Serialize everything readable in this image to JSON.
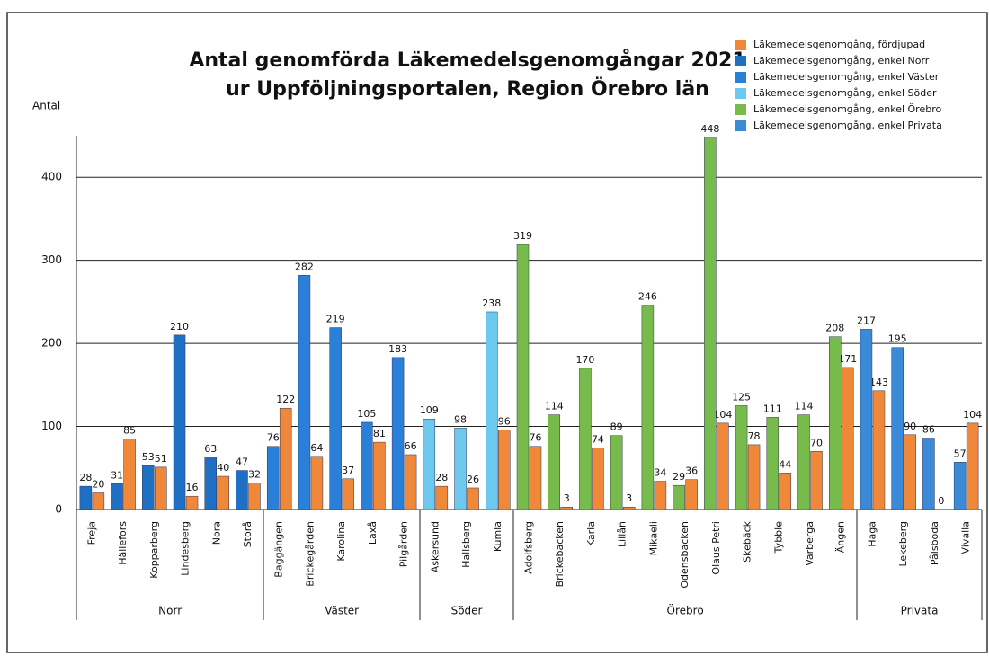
{
  "chart_data": {
    "type": "bar",
    "title": [
      "Antal genomförda Läkemedelsgenomgångar 2021",
      "ur Uppföljningsportalen, Region Örebro län"
    ],
    "y_label": "Antal",
    "categories": [
      "Freja",
      "Hällefors",
      "Kopparberg",
      "Lindesberg",
      "Nora",
      "Storå",
      "Baggängen",
      "Brickegården",
      "Karolina",
      "Laxå",
      "Pilgården",
      "Askersund",
      "Hallsberg",
      "Kumla",
      "Adolfsberg",
      "Brickebacken",
      "Karla",
      "Lillån",
      "Mikaeli",
      "Odensbacken",
      "Olaus Petri",
      "Skebäck",
      "Tybble",
      "Varberga",
      "Ängen",
      "Haga",
      "Lekeberg",
      "Pålsboda",
      "Vivalla"
    ],
    "group_labels": [
      "Norr",
      "Väster",
      "Söder",
      "Örebro",
      "Privata"
    ],
    "series": [
      {
        "name": "Läkemedelsgenomgång, fördjupad",
        "color": "#f0883a",
        "values": [
          20,
          85,
          51,
          16,
          40,
          32,
          122,
          64,
          37,
          81,
          66,
          28,
          26,
          96,
          76,
          3,
          74,
          3,
          34,
          36,
          104,
          78,
          44,
          70,
          171,
          143,
          90,
          0,
          104
        ]
      },
      {
        "name": "Läkemedelsgenomgång, enkel Norr",
        "color": "#1f6fc4",
        "values": [
          28,
          31,
          53,
          210,
          63,
          47,
          null,
          null,
          null,
          null,
          null,
          null,
          null,
          null,
          null,
          null,
          null,
          null,
          null,
          null,
          null,
          null,
          null,
          null,
          null,
          null,
          null,
          null,
          null
        ]
      },
      {
        "name": "Läkemedelsgenomgång, enkel Väster",
        "color": "#2a80d8",
        "values": [
          null,
          null,
          null,
          null,
          null,
          null,
          76,
          282,
          219,
          105,
          183,
          null,
          null,
          null,
          null,
          null,
          null,
          null,
          null,
          null,
          null,
          null,
          null,
          null,
          null,
          null,
          null,
          null,
          null
        ]
      },
      {
        "name": "Läkemedelsgenomgång, enkel Söder",
        "color": "#6cc8ef",
        "values": [
          null,
          null,
          null,
          null,
          null,
          null,
          null,
          null,
          null,
          null,
          null,
          109,
          98,
          238,
          null,
          null,
          null,
          null,
          null,
          null,
          null,
          null,
          null,
          null,
          null,
          null,
          null,
          null,
          null
        ]
      },
      {
        "name": "Läkemedelsgenomgång, enkel Örebro",
        "color": "#76bb4c",
        "values": [
          null,
          null,
          null,
          null,
          null,
          null,
          null,
          null,
          null,
          null,
          null,
          null,
          null,
          null,
          319,
          114,
          170,
          89,
          246,
          29,
          448,
          125,
          111,
          114,
          208,
          null,
          null,
          null,
          null
        ]
      },
      {
        "name": "Läkemedelsgenomgång, enkel Privata",
        "color": "#3a8ad8",
        "values": [
          null,
          null,
          null,
          null,
          null,
          null,
          null,
          null,
          null,
          null,
          null,
          null,
          null,
          null,
          null,
          null,
          null,
          null,
          null,
          null,
          null,
          null,
          null,
          null,
          null,
          217,
          195,
          86,
          57
        ]
      }
    ],
    "ylim": [
      0,
      450
    ],
    "yticks": [
      0,
      100,
      200,
      300,
      400
    ],
    "grid": true
  }
}
